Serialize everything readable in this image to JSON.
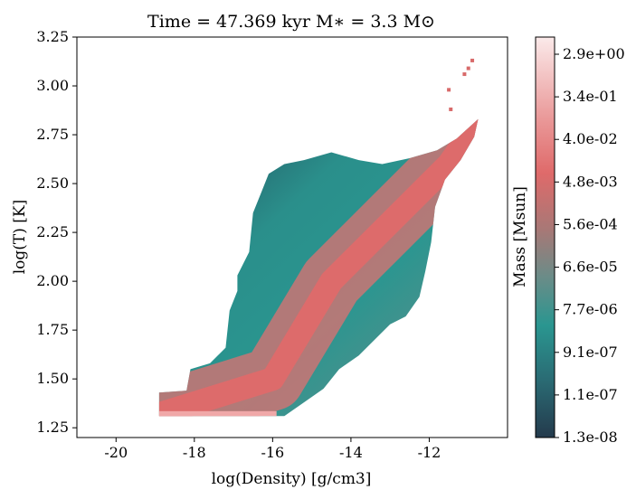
{
  "chart_data": {
    "type": "heatmap",
    "title": "Time = 47.369 kyr    M$_*$ = 3.3 M$_\\odot$",
    "title_display": "Time = 47.369 kyr    M∗ = 3.3 M⊙",
    "xlabel": "log(Density) [g/cm3]",
    "ylabel": "log(T) [K]",
    "xlim": [
      -21.0,
      -10.0
    ],
    "ylim": [
      1.2,
      3.25
    ],
    "xticks": [
      -20,
      -18,
      -16,
      -14,
      -12
    ],
    "xtick_labels": [
      "-20",
      "-18",
      "-16",
      "-14",
      "-12"
    ],
    "yticks": [
      1.25,
      1.5,
      1.75,
      2.0,
      2.25,
      2.5,
      2.75,
      3.0,
      3.25
    ],
    "ytick_labels": [
      "1.25",
      "1.50",
      "1.75",
      "2.00",
      "2.25",
      "2.50",
      "2.75",
      "3.00",
      "3.25"
    ],
    "colorbar": {
      "label": "Mass [Msun]",
      "scale": "log",
      "ticks": [
        "2.9e+00",
        "3.4e-01",
        "4.0e-02",
        "4.8e-03",
        "5.6e-04",
        "6.6e-05",
        "7.7e-06",
        "9.1e-07",
        "1.1e-07",
        "1.3e-08"
      ],
      "colormap": [
        "#243a4c",
        "#2a6a73",
        "#2a9690",
        "#6a8c88",
        "#a87876",
        "#df6a6a",
        "#ea9a9a",
        "#fbeaea"
      ]
    },
    "distribution": {
      "description_points": [
        {
          "x": -18.9,
          "y": 1.32,
          "level": 0.8
        },
        {
          "x": -16.0,
          "y": 1.5,
          "level": 0.65
        },
        {
          "x": -14.5,
          "y": 2.0,
          "level": 0.55
        },
        {
          "x": -13.0,
          "y": 2.3,
          "level": 0.55
        },
        {
          "x": -11.5,
          "y": 2.6,
          "level": 0.6
        },
        {
          "x": -10.8,
          "y": 2.8,
          "level": 0.6
        }
      ]
    },
    "grid": false
  }
}
